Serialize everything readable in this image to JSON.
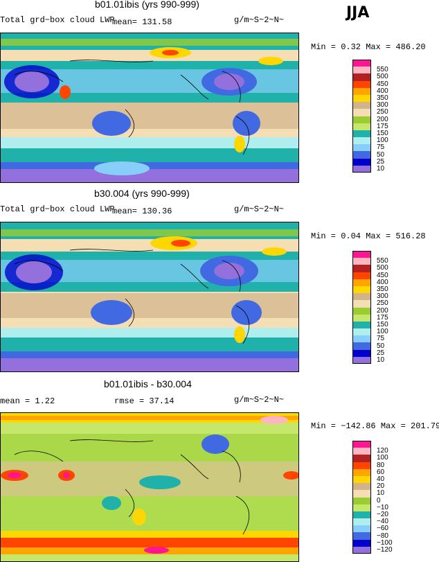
{
  "season": "JJA",
  "units": "g/m~S~2~N~",
  "panels": [
    {
      "title": "b01.01ibis (yrs 990-999)",
      "left_label": "Total grd−box cloud LWP",
      "mean_label": "mean=  131.58",
      "minmax": "Min =   0.32 Max = 486.20",
      "legend": [
        "550",
        "500",
        "450",
        "400",
        "350",
        "300",
        "250",
        "200",
        "175",
        "150",
        "100",
        "75",
        "50",
        "25",
        "10"
      ],
      "legend_colors": [
        "#ff1493",
        "#ffb6c1",
        "#b22222",
        "#ff4500",
        "#ffa500",
        "#ffd700",
        "#d2b48c",
        "#f5deb3",
        "#9acd32",
        "#c5e86c",
        "#20b2aa",
        "#afeeee",
        "#87cefa",
        "#4169e1",
        "#0000cd",
        "#9370db"
      ]
    },
    {
      "title": "b30.004 (yrs 990-999)",
      "left_label": "Total grd−box cloud LWP",
      "mean_label": "mean=  130.36",
      "minmax": "Min =   0.04 Max = 516.28",
      "legend": [
        "550",
        "500",
        "450",
        "400",
        "350",
        "300",
        "250",
        "200",
        "175",
        "150",
        "100",
        "75",
        "50",
        "25",
        "10"
      ],
      "legend_colors": [
        "#ff1493",
        "#ffb6c1",
        "#b22222",
        "#ff4500",
        "#ffa500",
        "#ffd700",
        "#d2b48c",
        "#f5deb3",
        "#9acd32",
        "#c5e86c",
        "#20b2aa",
        "#afeeee",
        "#87cefa",
        "#4169e1",
        "#0000cd",
        "#9370db"
      ]
    },
    {
      "title": "b01.01ibis - b30.004",
      "left_label": "mean =    1.22",
      "mean_label": "rmse =  37.14",
      "minmax": "Min = −142.86 Max = 201.79",
      "legend": [
        "120",
        "100",
        "80",
        "60",
        "40",
        "20",
        "10",
        "0",
        "−10",
        "−20",
        "−40",
        "−60",
        "−80",
        "−100",
        "−120"
      ],
      "legend_colors": [
        "#ff1493",
        "#ffb6c1",
        "#b22222",
        "#ff4500",
        "#ffa500",
        "#ffd700",
        "#d2b48c",
        "#f5deb3",
        "#9acd32",
        "#c5e86c",
        "#20b2aa",
        "#afeeee",
        "#87cefa",
        "#4169e1",
        "#0000cd",
        "#9370db"
      ]
    }
  ]
}
